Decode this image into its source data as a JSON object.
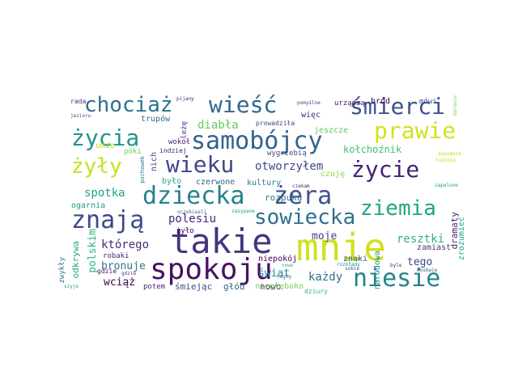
{
  "words": [
    {
      "text": "mnie",
      "color": "#d0e11c"
    },
    {
      "text": "takie",
      "color": "#46337e"
    },
    {
      "text": "spokoju",
      "color": "#471164"
    },
    {
      "text": "dziecka",
      "color": "#277f8e"
    },
    {
      "text": "żera",
      "color": "#3b528b"
    },
    {
      "text": "znają",
      "color": "#3e4989"
    },
    {
      "text": "samobójcy",
      "color": "#33638d"
    },
    {
      "text": "wieku",
      "color": "#404688"
    },
    {
      "text": "życia",
      "color": "#1f958b"
    },
    {
      "text": "wieść",
      "color": "#31688e"
    },
    {
      "text": "chociaż",
      "color": "#2c728e"
    },
    {
      "text": "śmierci",
      "color": "#3b528b"
    },
    {
      "text": "prawie",
      "color": "#d2e21b"
    },
    {
      "text": "życie",
      "color": "#482173"
    },
    {
      "text": "żyły",
      "color": "#c8e020"
    },
    {
      "text": "sowiecka",
      "color": "#2d708e"
    },
    {
      "text": "niesie",
      "color": "#25838e"
    },
    {
      "text": "ziemia",
      "color": "#20a486"
    },
    {
      "text": "otworzyłem",
      "color": "#3f4788"
    },
    {
      "text": "spotka",
      "color": "#1fa187"
    },
    {
      "text": "polesiu",
      "color": "#482475"
    },
    {
      "text": "diabła",
      "color": "#65cb5e"
    },
    {
      "text": "resztki",
      "color": "#2fb47c"
    },
    {
      "text": "którego",
      "color": "#482878"
    },
    {
      "text": "tego",
      "color": "#3f4889"
    },
    {
      "text": "każdy",
      "color": "#2e6e8e"
    },
    {
      "text": "moje",
      "color": "#414487"
    },
    {
      "text": "bronuje",
      "color": "#2a788e"
    },
    {
      "text": "wciąż",
      "color": "#440154"
    },
    {
      "text": "świat",
      "color": "#24878e"
    },
    {
      "text": "nowo",
      "color": "#472d7b"
    },
    {
      "text": "polskim",
      "color": "#2fb47c"
    },
    {
      "text": "odkrywa",
      "color": "#22a884"
    },
    {
      "text": "dramaty",
      "color": "#481f70"
    },
    {
      "text": "kołchoźnik",
      "color": "#44bf70"
    },
    {
      "text": "rozpuku",
      "color": "#297a8e"
    },
    {
      "text": "czuję",
      "color": "#8fd744"
    },
    {
      "text": "niepokój",
      "color": "#440154"
    },
    {
      "text": "zamiast",
      "color": "#443983"
    },
    {
      "text": "znaki",
      "color": "#365d8d"
    },
    {
      "text": "zrozumieć",
      "color": "#20a486"
    },
    {
      "text": "narodowa",
      "color": "#21918c"
    },
    {
      "text": "śmiejąc",
      "color": "#3b528b"
    },
    {
      "text": "głód",
      "color": "#32658e"
    },
    {
      "text": "niegłęboko",
      "color": "#7ad151"
    },
    {
      "text": "potem",
      "color": "#481a6c"
    },
    {
      "text": "czerwone",
      "color": "#355f8d"
    },
    {
      "text": "kultury",
      "color": "#2a788e"
    },
    {
      "text": "było",
      "color": "#20a386"
    },
    {
      "text": "żyło",
      "color": "#440154"
    },
    {
      "text": "ogarnia",
      "color": "#1e9c89"
    },
    {
      "text": "robaki",
      "color": "#482677"
    },
    {
      "text": "umie",
      "color": "#b5de2b"
    },
    {
      "text": "póki",
      "color": "#6ece58"
    },
    {
      "text": "nich",
      "color": "#3e4a89"
    },
    {
      "text": "wokół",
      "color": "#481668"
    },
    {
      "text": "leżę",
      "color": "#46337f"
    },
    {
      "text": "trupów",
      "color": "#2f6c8e"
    },
    {
      "text": "wygrzebią",
      "color": "#3f4788"
    },
    {
      "text": "jeszcze",
      "color": "#5ec962"
    },
    {
      "text": "więc",
      "color": "#482979"
    },
    {
      "text": "bród",
      "color": "#440154"
    },
    {
      "text": "mówi",
      "color": "#3b528b"
    },
    {
      "text": "urządzą",
      "color": "#48186a"
    },
    {
      "text": "prowadziła",
      "color": "#3f4889"
    },
    {
      "text": "indziej",
      "color": "#482071"
    },
    {
      "text": "zwykły",
      "color": "#2c728e"
    },
    {
      "text": "gdzie",
      "color": "#481a6c"
    },
    {
      "text": "pochowek",
      "color": "#2a778e"
    },
    {
      "text": "rada",
      "color": "#472f7d"
    },
    {
      "text": "pijany",
      "color": "#481b6d"
    },
    {
      "text": "pomyślne",
      "color": "#423f85"
    },
    {
      "text": "szyje",
      "color": "#20a386"
    },
    {
      "text": "dziury",
      "color": "#31b57b"
    },
    {
      "text": "sobie",
      "color": "#3a548c"
    },
    {
      "text": "moskwie",
      "color": "#33638d"
    },
    {
      "text": "byle",
      "color": "#472c7a"
    },
    {
      "text": "rozkłady",
      "color": "#1f958b"
    },
    {
      "text": "gdzie",
      "color": "#414487"
    },
    {
      "text": "oprawie",
      "color": "#7fd34e"
    },
    {
      "text": "zasypane",
      "color": "#1fa088"
    },
    {
      "text": "jezioru",
      "color": "#3f4788"
    },
    {
      "text": "oczekiwali",
      "color": "#2c738e"
    },
    {
      "text": "nagły",
      "color": "#2e6f8e"
    },
    {
      "text": "ludzkie",
      "color": "#c2df23"
    },
    {
      "text": "czekam",
      "color": "#46307e"
    },
    {
      "text": "nowo",
      "color": "#2db27d"
    },
    {
      "text": "zapalone",
      "color": "#1fa088"
    },
    {
      "text": "dopomoże",
      "color": "#b8de29"
    }
  ]
}
